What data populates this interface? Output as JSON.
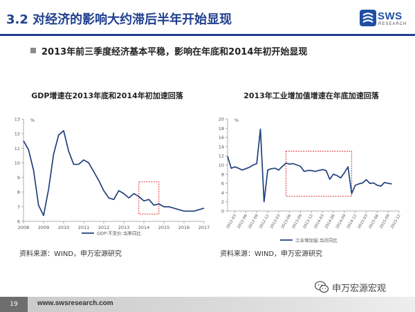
{
  "header": {
    "title": "3.2 对经济的影响大约滞后半年开始显现",
    "logo_text": "SWS",
    "logo_sub": "RESEARCH",
    "logo_color": "#1f4fa3",
    "accent": "#1f3f8e"
  },
  "bullet": "2013年前三季度经济基本平稳，影响在年底和2014年初开始显现",
  "charts": {
    "left": {
      "source": "资料来源：WIND，申万宏源研究"
    },
    "right": {
      "source": "资料来源：WIND，申万宏源研究"
    }
  },
  "chart_data": [
    {
      "type": "line",
      "title": "GDP增速在2013年底和2014年初加速回落",
      "ylabel": "%",
      "ylim": [
        6,
        13
      ],
      "yticks": [
        6,
        7,
        8,
        9,
        10,
        11,
        12,
        13
      ],
      "xlim": [
        2008,
        2017
      ],
      "xticks": [
        "2008",
        "2009",
        "2010",
        "2011",
        "2012",
        "2013",
        "2014",
        "2015",
        "2016",
        "2017"
      ],
      "grid": false,
      "legend": "bottom",
      "series": [
        {
          "name": "GDP:不变价:当季同比",
          "color": "#1f3f7a",
          "x": [
            2008.0,
            2008.25,
            2008.5,
            2008.75,
            2009.0,
            2009.25,
            2009.5,
            2009.75,
            2010.0,
            2010.25,
            2010.5,
            2010.75,
            2011.0,
            2011.25,
            2011.5,
            2011.75,
            2012.0,
            2012.25,
            2012.5,
            2012.75,
            2013.0,
            2013.25,
            2013.5,
            2013.75,
            2014.0,
            2014.25,
            2014.5,
            2014.75,
            2015.0,
            2015.25,
            2015.5,
            2015.75,
            2016.0,
            2016.25,
            2016.5,
            2016.75,
            2017.0
          ],
          "values": [
            11.5,
            10.9,
            9.5,
            7.1,
            6.4,
            8.2,
            10.6,
            11.9,
            12.2,
            10.8,
            9.9,
            9.9,
            10.2,
            10.0,
            9.4,
            8.8,
            8.1,
            7.6,
            7.5,
            8.1,
            7.9,
            7.6,
            7.9,
            7.7,
            7.4,
            7.5,
            7.1,
            7.2,
            7.0,
            7.0,
            6.9,
            6.8,
            6.7,
            6.7,
            6.7,
            6.8,
            6.9
          ]
        }
      ],
      "highlight_box": {
        "x": [
          2013.75,
          2014.75
        ],
        "y": [
          6.5,
          8.7
        ],
        "color": "#e03030"
      }
    },
    {
      "type": "line",
      "title": "2013年工业增加值增速在年底加速回落",
      "ylabel": "%",
      "ylim": [
        0,
        20
      ],
      "yticks": [
        0,
        2,
        4,
        6,
        8,
        10,
        12,
        14,
        16,
        18,
        20
      ],
      "xticks": [
        "2012-03",
        "2012-06",
        "2012-09",
        "2012-12",
        "2013-03",
        "2013-06",
        "2013-09",
        "2013-12",
        "2014-03",
        "2014-06",
        "2014-09",
        "2014-12",
        "2015-03",
        "2015-06",
        "2015-09",
        "2015-12"
      ],
      "grid": false,
      "legend": "bottom",
      "series": [
        {
          "name": "工业增加值:当月同比",
          "color": "#1f3f7a",
          "x": [
            0,
            1,
            2,
            3,
            4,
            5,
            6,
            7,
            8,
            9,
            10,
            11,
            12,
            13,
            14,
            15,
            16,
            17,
            18,
            19,
            20,
            21,
            22,
            23,
            24,
            25,
            26,
            27,
            28,
            29,
            30,
            31,
            32,
            33,
            34,
            35,
            36,
            37,
            38,
            39,
            40,
            41,
            42,
            43,
            44,
            45
          ],
          "values": [
            11.9,
            9.3,
            9.6,
            9.3,
            8.9,
            9.2,
            9.5,
            10.0,
            10.3,
            17.8,
            2.0,
            8.9,
            9.2,
            9.3,
            8.9,
            9.7,
            10.4,
            10.2,
            10.3,
            10.0,
            9.7,
            8.6,
            8.8,
            8.8,
            8.6,
            8.8,
            9.0,
            8.8,
            6.9,
            8.0,
            7.7,
            7.2,
            8.3,
            9.6,
            3.8,
            5.6,
            5.9,
            6.1,
            6.8,
            6.0,
            6.1,
            5.6,
            5.4,
            6.2,
            6.0,
            5.9
          ]
        }
      ],
      "highlight_box": {
        "x": [
          16,
          34
        ],
        "y": [
          3.2,
          13.0
        ],
        "color": "#e03030"
      }
    }
  ],
  "footer": {
    "page_number": "19",
    "url": "www.swsresearch.com"
  },
  "watermark": {
    "text": "申万宏源宏观",
    "icon": "wechat-icon"
  }
}
